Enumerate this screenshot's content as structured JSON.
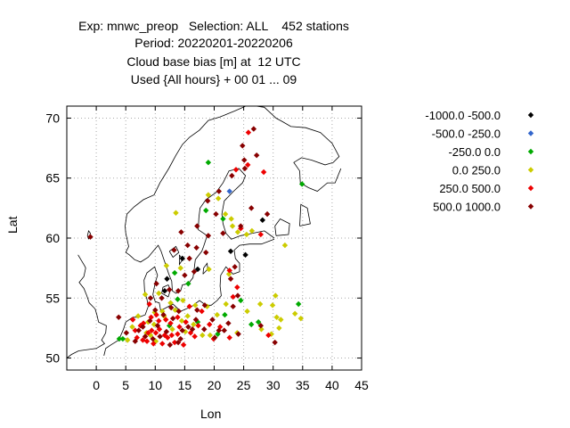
{
  "title": {
    "line1": "Exp: mnwc_preop   Selection: ALL    452 stations",
    "line2": "Period: 20220201-20220206",
    "line3": "Cloud base bias [m] at  12 UTC",
    "line4": "Used {All hours} + 00 01 ... 09"
  },
  "chart_data": {
    "type": "scatter",
    "xlabel": "Lon",
    "ylabel": "Lat",
    "xlim": [
      -5,
      45
    ],
    "ylim": [
      49,
      71
    ],
    "xticks": [
      0,
      5,
      10,
      15,
      20,
      25,
      30,
      35,
      40,
      45
    ],
    "yticks": [
      50,
      55,
      60,
      65,
      70
    ],
    "grid": true,
    "legend_position": "right",
    "series": [
      {
        "name": "-1000.0 -500.0",
        "color": "#000000",
        "points": [
          [
            17.2,
            57.4
          ],
          [
            22.8,
            58.9
          ],
          [
            28.2,
            61.5
          ],
          [
            25.3,
            58.6
          ],
          [
            12.0,
            56.6
          ],
          [
            11.6,
            55.6
          ],
          [
            14.6,
            58.3
          ]
        ]
      },
      {
        "name": "-500.0 -250.0",
        "color": "#3366cc",
        "points": [
          [
            22.6,
            63.9
          ]
        ]
      },
      {
        "name": "-250.0 0.0",
        "color": "#00aa00",
        "points": [
          [
            34.9,
            64.5
          ],
          [
            19.0,
            66.3
          ],
          [
            21.5,
            61.6
          ],
          [
            18.6,
            62.3
          ],
          [
            15.6,
            56.2
          ],
          [
            13.3,
            57.1
          ],
          [
            20.6,
            52.0
          ],
          [
            26.3,
            52.8
          ],
          [
            34.3,
            54.5
          ],
          [
            21.8,
            53.6
          ],
          [
            17.2,
            53.0
          ],
          [
            24.5,
            54.8
          ],
          [
            27.5,
            53.0
          ],
          [
            13.8,
            54.9
          ],
          [
            12.4,
            52.7
          ],
          [
            3.9,
            51.6
          ],
          [
            4.5,
            51.6
          ]
        ]
      },
      {
        "name": "0.0 250.0",
        "color": "#cccc00",
        "points": [
          [
            13.5,
            62.1
          ],
          [
            19.0,
            63.6
          ],
          [
            20.7,
            63.3
          ],
          [
            25.5,
            60.3
          ],
          [
            21.9,
            62.0
          ],
          [
            23.1,
            61.0
          ],
          [
            22.9,
            61.6
          ],
          [
            26.4,
            60.6
          ],
          [
            32.0,
            59.4
          ],
          [
            24.0,
            60.5
          ],
          [
            22.5,
            57.0
          ],
          [
            19.1,
            57.4
          ],
          [
            14.3,
            57.5
          ],
          [
            11.9,
            57.7
          ],
          [
            16.8,
            54.4
          ],
          [
            18.8,
            54.3
          ],
          [
            23.9,
            52.1
          ],
          [
            18.0,
            51.9
          ],
          [
            19.3,
            51.9
          ],
          [
            20.5,
            53.6
          ],
          [
            22.0,
            54.5
          ],
          [
            25.6,
            53.9
          ],
          [
            28.0,
            52.4
          ],
          [
            29.9,
            54.4
          ],
          [
            30.4,
            55.2
          ],
          [
            30.6,
            53.4
          ],
          [
            31.0,
            52.5
          ],
          [
            34.7,
            53.3
          ],
          [
            33.7,
            53.7
          ],
          [
            29.7,
            52.0
          ],
          [
            31.3,
            53.2
          ],
          [
            27.8,
            54.5
          ],
          [
            8.3,
            55.3
          ],
          [
            10.1,
            51.4
          ],
          [
            8.5,
            52.1
          ],
          [
            9.9,
            53.8
          ],
          [
            11.5,
            53.5
          ],
          [
            12.9,
            52.4
          ],
          [
            13.4,
            54.0
          ],
          [
            14.5,
            53.1
          ],
          [
            6.1,
            52.6
          ],
          [
            7.1,
            53.5
          ],
          [
            9.8,
            52.8
          ],
          [
            15.5,
            53.5
          ],
          [
            10.6,
            55.4
          ],
          [
            12.6,
            54.6
          ],
          [
            5.3,
            51.5
          ],
          [
            16.5,
            52.8
          ],
          [
            11.2,
            53.9
          ],
          [
            9.2,
            51.9
          ],
          [
            14.7,
            54.8
          ],
          [
            15.1,
            52.2
          ],
          [
            8.8,
            53.0
          ]
        ]
      },
      {
        "name": "250.0 500.0",
        "color": "#ee0000",
        "points": [
          [
            28.4,
            65.5
          ],
          [
            23.7,
            65.7
          ],
          [
            25.7,
            66.1
          ],
          [
            24.5,
            60.8
          ],
          [
            27.9,
            60.3
          ],
          [
            23.2,
            55.1
          ],
          [
            23.9,
            55.9
          ],
          [
            22.6,
            57.3
          ],
          [
            29.2,
            51.9
          ],
          [
            6.9,
            51.7
          ],
          [
            8.0,
            52.9
          ],
          [
            9.4,
            52.3
          ],
          [
            10.7,
            52.4
          ],
          [
            11.2,
            51.2
          ],
          [
            12.8,
            51.9
          ],
          [
            13.8,
            53.4
          ],
          [
            14.8,
            51.1
          ],
          [
            16.0,
            52.1
          ],
          [
            17.9,
            53.9
          ],
          [
            19.2,
            52.8
          ],
          [
            21.0,
            52.6
          ],
          [
            10.2,
            53.6
          ],
          [
            7.5,
            52.7
          ],
          [
            8.6,
            51.4
          ],
          [
            12.1,
            51.7
          ],
          [
            13.3,
            51.3
          ],
          [
            15.8,
            54.3
          ],
          [
            9.0,
            54.5
          ],
          [
            11.8,
            53.2
          ],
          [
            14.1,
            52.6
          ],
          [
            6.2,
            53.2
          ],
          [
            8.8,
            52.1
          ],
          [
            10.6,
            53.1
          ],
          [
            12.6,
            52.9
          ],
          [
            16.7,
            51.8
          ],
          [
            9.7,
            51.2
          ],
          [
            7.9,
            51.5
          ],
          [
            17.3,
            52.7
          ],
          [
            13.8,
            52.0
          ],
          [
            11.6,
            51.9
          ],
          [
            9.3,
            53.4
          ],
          [
            15.2,
            53.0
          ],
          [
            19.9,
            51.6
          ],
          [
            22.6,
            51.7
          ],
          [
            6.6,
            52.3
          ],
          [
            10.1,
            52.1
          ],
          [
            25.8,
            68.8
          ]
        ]
      },
      {
        "name": "500.0 1000.0",
        "color": "#880000",
        "points": [
          [
            -1.0,
            60.1
          ],
          [
            26.7,
            69.1
          ],
          [
            24.8,
            67.7
          ],
          [
            25.1,
            66.5
          ],
          [
            27.2,
            66.9
          ],
          [
            25.2,
            65.8
          ],
          [
            23.0,
            65.2
          ],
          [
            26.3,
            62.5
          ],
          [
            29.0,
            62.0
          ],
          [
            24.5,
            61.0
          ],
          [
            21.5,
            60.4
          ],
          [
            19.0,
            60.2
          ],
          [
            17.1,
            61.0
          ],
          [
            14.4,
            60.5
          ],
          [
            15.5,
            59.4
          ],
          [
            17.0,
            59.2
          ],
          [
            18.6,
            58.8
          ],
          [
            13.2,
            59.0
          ],
          [
            15.8,
            58.3
          ],
          [
            16.6,
            57.2
          ],
          [
            15.0,
            56.9
          ],
          [
            13.9,
            55.6
          ],
          [
            12.4,
            55.7
          ],
          [
            10.2,
            56.2
          ],
          [
            9.2,
            55.0
          ],
          [
            22.8,
            56.6
          ],
          [
            23.5,
            57.6
          ],
          [
            24.0,
            55.2
          ],
          [
            23.2,
            54.3
          ],
          [
            21.7,
            52.3
          ],
          [
            24.1,
            52.0
          ],
          [
            27.9,
            52.7
          ],
          [
            30.3,
            51.3
          ],
          [
            3.8,
            53.4
          ],
          [
            5.1,
            52.1
          ],
          [
            6.6,
            51.4
          ],
          [
            7.9,
            52.6
          ],
          [
            9.1,
            53.1
          ],
          [
            10.8,
            51.8
          ],
          [
            11.9,
            52.2
          ],
          [
            13.0,
            53.3
          ],
          [
            14.3,
            51.6
          ],
          [
            15.6,
            52.6
          ],
          [
            17.1,
            54.0
          ],
          [
            18.4,
            54.4
          ],
          [
            19.7,
            53.2
          ],
          [
            20.8,
            52.3
          ],
          [
            12.7,
            54.2
          ],
          [
            10.0,
            54.0
          ],
          [
            11.1,
            55.0
          ],
          [
            14.0,
            53.9
          ],
          [
            8.3,
            51.8
          ],
          [
            9.6,
            51.6
          ],
          [
            12.5,
            51.1
          ],
          [
            13.9,
            51.3
          ],
          [
            16.3,
            52.4
          ],
          [
            7.2,
            52.3
          ],
          [
            10.4,
            52.7
          ],
          [
            11.4,
            53.6
          ],
          [
            14.6,
            52.3
          ],
          [
            16.9,
            53.2
          ],
          [
            18.3,
            52.4
          ],
          [
            20.1,
            51.7
          ],
          [
            22.4,
            52.9
          ],
          [
            20.8,
            63.9
          ],
          [
            20.3,
            62.0
          ],
          [
            18.9,
            63.1
          ]
        ]
      }
    ]
  }
}
